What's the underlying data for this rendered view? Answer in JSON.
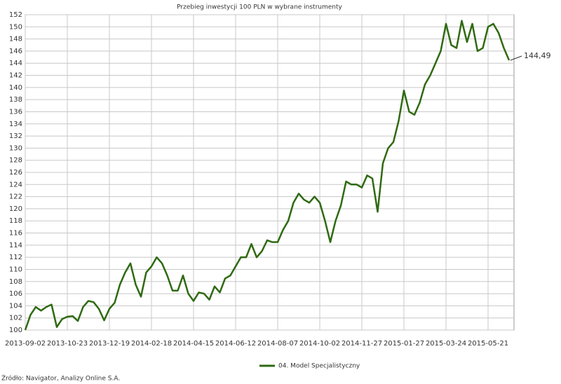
{
  "chart_data": {
    "type": "line",
    "title": "Przebieg inwestycji 100 PLN w wybrane instrumenty",
    "source": "Źródło: Navigator, Analizy Online S.A.",
    "categories": [
      "2013-09-02",
      null,
      null,
      null,
      null,
      null,
      null,
      null,
      "2013-10-23",
      null,
      null,
      null,
      null,
      null,
      null,
      null,
      "2013-12-19",
      null,
      null,
      null,
      null,
      null,
      null,
      null,
      "2014-02-18",
      null,
      null,
      null,
      null,
      null,
      null,
      null,
      "2014-04-15",
      null,
      null,
      null,
      null,
      null,
      null,
      null,
      "2014-06-12",
      null,
      null,
      null,
      null,
      null,
      null,
      null,
      "2014-08-07",
      null,
      null,
      null,
      null,
      null,
      null,
      null,
      "2014-10-02",
      null,
      null,
      null,
      null,
      null,
      null,
      null,
      "2014-11-27",
      null,
      null,
      null,
      null,
      null,
      null,
      null,
      "2015-01-27",
      null,
      null,
      null,
      null,
      null,
      null,
      null,
      "2015-03-24",
      null,
      null,
      null,
      null,
      null,
      null,
      null,
      "2015-05-21",
      null,
      null,
      null,
      null
    ],
    "series": [
      {
        "name": "04. Model Specjalistyczny",
        "color": "#2f6a12",
        "values": [
          100,
          102.5,
          103.8,
          103.2,
          103.8,
          104.2,
          100.5,
          101.8,
          102.2,
          102.3,
          101.5,
          103.8,
          104.8,
          104.6,
          103.5,
          101.6,
          103.5,
          104.5,
          107.5,
          109.5,
          111,
          107.5,
          105.5,
          109.5,
          110.5,
          112,
          111,
          109,
          106.5,
          106.5,
          109,
          106,
          104.8,
          106.2,
          106,
          105,
          107.2,
          106.2,
          108.5,
          109,
          110.5,
          112,
          112,
          114.2,
          112,
          113,
          114.8,
          114.5,
          114.5,
          116.5,
          118,
          121,
          122.5,
          121.5,
          121,
          122,
          121,
          118,
          114.5,
          118,
          120.5,
          124.5,
          124,
          124,
          123.5,
          125.5,
          125,
          119.5,
          127.5,
          130,
          131,
          134.5,
          139.5,
          136,
          135.5,
          137.5,
          140.5,
          142,
          144,
          146,
          150.5,
          147,
          146.5,
          151,
          147.5,
          150.5,
          146,
          146.5,
          150,
          150.5,
          149,
          146.5,
          144.49
        ],
        "value_labels": [
          null,
          null,
          null,
          null,
          null,
          null,
          null,
          null,
          null,
          null,
          null,
          null,
          null,
          null,
          null,
          null,
          null,
          null,
          null,
          null,
          null,
          null,
          null,
          null,
          null,
          null,
          null,
          null,
          null,
          null,
          null,
          null,
          null,
          null,
          null,
          null,
          null,
          null,
          null,
          null,
          null,
          null,
          null,
          null,
          null,
          null,
          null,
          null,
          null,
          null,
          null,
          null,
          null,
          null,
          null,
          null,
          null,
          null,
          null,
          null,
          null,
          null,
          null,
          null,
          null,
          null,
          null,
          null,
          null,
          null,
          null,
          null,
          null,
          null,
          null,
          null,
          null,
          null,
          null,
          null,
          null,
          null,
          null,
          null,
          null,
          null,
          null,
          null,
          null,
          null,
          null,
          null,
          "144,49"
        ]
      }
    ],
    "ylim": [
      100,
      152
    ],
    "yticks": [
      100,
      102,
      104,
      106,
      108,
      110,
      112,
      114,
      116,
      118,
      120,
      122,
      124,
      126,
      128,
      130,
      132,
      134,
      136,
      138,
      140,
      142,
      144,
      146,
      148,
      150,
      152
    ],
    "grid": true,
    "legend": "bottom"
  }
}
